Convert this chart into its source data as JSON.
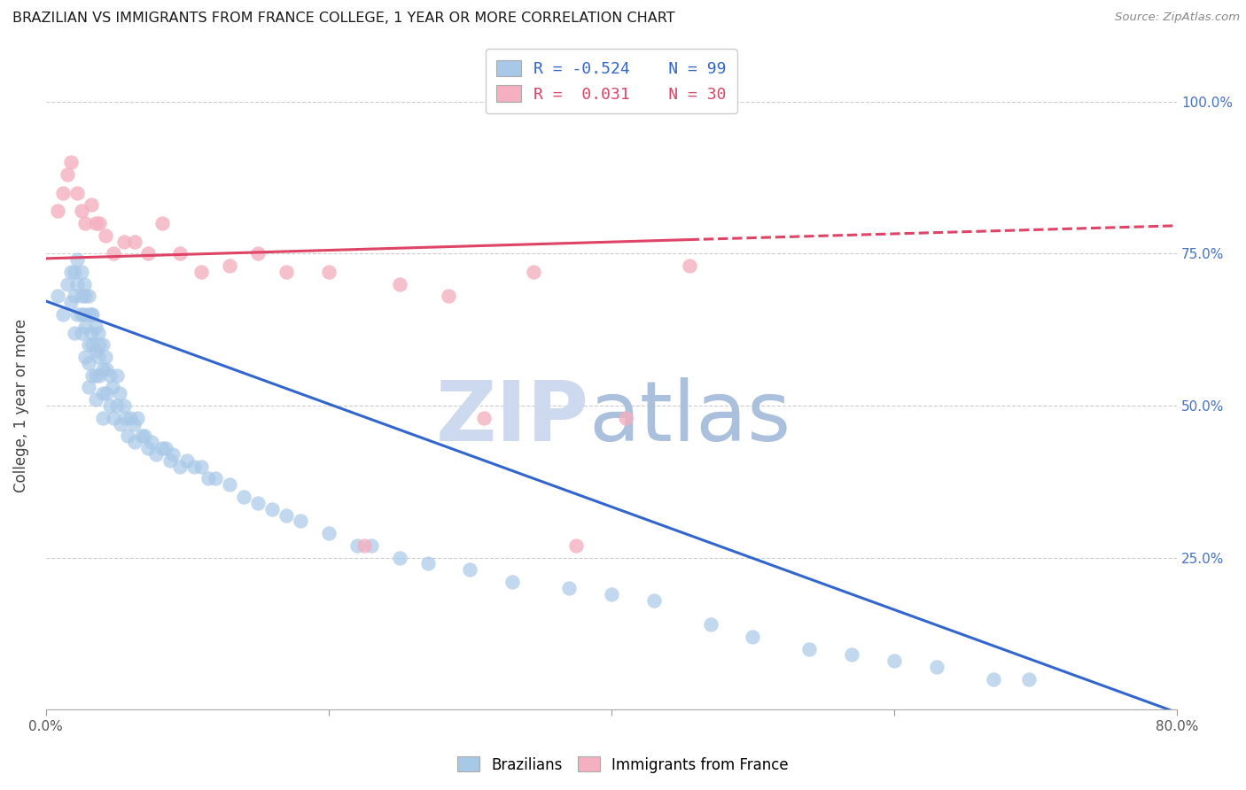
{
  "title": "BRAZILIAN VS IMMIGRANTS FROM FRANCE COLLEGE, 1 YEAR OR MORE CORRELATION CHART",
  "source": "Source: ZipAtlas.com",
  "ylabel": "College, 1 year or more",
  "r_blue": -0.524,
  "n_blue": 99,
  "r_pink": 0.031,
  "n_pink": 30,
  "blue_color": "#a8c8e8",
  "pink_color": "#f4afc0",
  "line_blue": "#3366cc",
  "line_pink": "#dd4466",
  "watermark_zip_color": "#ccd9ee",
  "watermark_atlas_color": "#aac0dc",
  "xlim": [
    0.0,
    0.8
  ],
  "ylim": [
    0.0,
    1.0
  ],
  "blue_line_x0": 0.0,
  "blue_line_y0": 0.672,
  "blue_line_x1": 0.8,
  "blue_line_y1": -0.005,
  "pink_line_solid_x0": 0.0,
  "pink_line_solid_y0": 0.742,
  "pink_line_solid_x1": 0.455,
  "pink_line_solid_y1": 0.773,
  "pink_line_dash_x0": 0.455,
  "pink_line_dash_y0": 0.773,
  "pink_line_dash_x1": 0.8,
  "pink_line_dash_y1": 0.796,
  "blue_scatter_x": [
    0.008,
    0.012,
    0.015,
    0.018,
    0.018,
    0.02,
    0.02,
    0.02,
    0.022,
    0.022,
    0.022,
    0.025,
    0.025,
    0.025,
    0.025,
    0.027,
    0.027,
    0.028,
    0.028,
    0.028,
    0.03,
    0.03,
    0.03,
    0.03,
    0.03,
    0.032,
    0.032,
    0.033,
    0.033,
    0.033,
    0.035,
    0.035,
    0.035,
    0.035,
    0.037,
    0.037,
    0.038,
    0.038,
    0.04,
    0.04,
    0.04,
    0.04,
    0.042,
    0.043,
    0.043,
    0.045,
    0.045,
    0.047,
    0.048,
    0.05,
    0.05,
    0.052,
    0.053,
    0.055,
    0.056,
    0.058,
    0.06,
    0.062,
    0.063,
    0.065,
    0.068,
    0.07,
    0.072,
    0.075,
    0.078,
    0.082,
    0.085,
    0.088,
    0.09,
    0.095,
    0.1,
    0.105,
    0.11,
    0.115,
    0.12,
    0.13,
    0.14,
    0.15,
    0.16,
    0.17,
    0.18,
    0.2,
    0.22,
    0.23,
    0.25,
    0.27,
    0.3,
    0.33,
    0.37,
    0.4,
    0.43,
    0.47,
    0.5,
    0.54,
    0.57,
    0.6,
    0.63,
    0.67,
    0.695
  ],
  "blue_scatter_y": [
    0.68,
    0.65,
    0.7,
    0.72,
    0.67,
    0.72,
    0.68,
    0.62,
    0.74,
    0.7,
    0.65,
    0.72,
    0.68,
    0.65,
    0.62,
    0.7,
    0.65,
    0.68,
    0.63,
    0.58,
    0.68,
    0.65,
    0.6,
    0.57,
    0.53,
    0.65,
    0.62,
    0.65,
    0.6,
    0.55,
    0.63,
    0.59,
    0.55,
    0.51,
    0.62,
    0.58,
    0.6,
    0.55,
    0.6,
    0.56,
    0.52,
    0.48,
    0.58,
    0.56,
    0.52,
    0.55,
    0.5,
    0.53,
    0.48,
    0.55,
    0.5,
    0.52,
    0.47,
    0.5,
    0.48,
    0.45,
    0.48,
    0.47,
    0.44,
    0.48,
    0.45,
    0.45,
    0.43,
    0.44,
    0.42,
    0.43,
    0.43,
    0.41,
    0.42,
    0.4,
    0.41,
    0.4,
    0.4,
    0.38,
    0.38,
    0.37,
    0.35,
    0.34,
    0.33,
    0.32,
    0.31,
    0.29,
    0.27,
    0.27,
    0.25,
    0.24,
    0.23,
    0.21,
    0.2,
    0.19,
    0.18,
    0.14,
    0.12,
    0.1,
    0.09,
    0.08,
    0.07,
    0.05,
    0.05
  ],
  "pink_scatter_x": [
    0.008,
    0.012,
    0.015,
    0.018,
    0.022,
    0.025,
    0.028,
    0.032,
    0.035,
    0.038,
    0.042,
    0.048,
    0.055,
    0.063,
    0.072,
    0.082,
    0.095,
    0.11,
    0.13,
    0.15,
    0.17,
    0.2,
    0.225,
    0.25,
    0.285,
    0.31,
    0.345,
    0.375,
    0.41,
    0.455
  ],
  "pink_scatter_y": [
    0.82,
    0.85,
    0.88,
    0.9,
    0.85,
    0.82,
    0.8,
    0.83,
    0.8,
    0.8,
    0.78,
    0.75,
    0.77,
    0.77,
    0.75,
    0.8,
    0.75,
    0.72,
    0.73,
    0.75,
    0.72,
    0.72,
    0.27,
    0.7,
    0.68,
    0.48,
    0.72,
    0.27,
    0.48,
    0.73
  ]
}
